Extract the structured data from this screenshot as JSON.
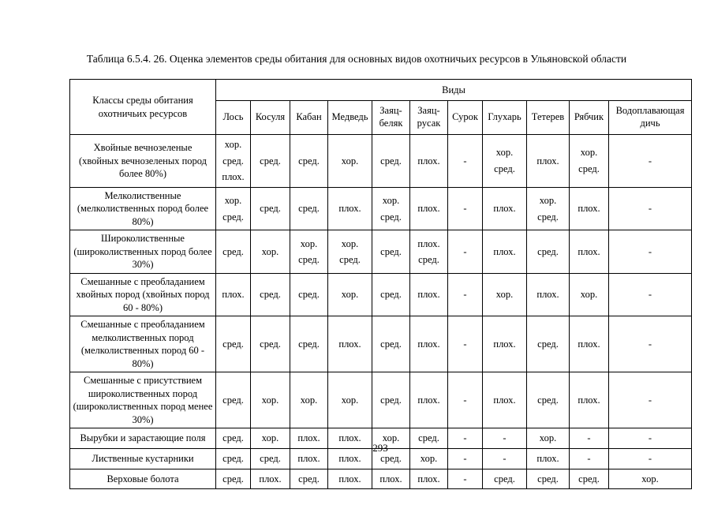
{
  "page": {
    "title": "Таблица 6.5.4. 26. Оценка элементов среды обитания для основных видов охотничьих ресурсов в Ульяновской области",
    "page_number": "293"
  },
  "table": {
    "corner_header": "Классы среды обитания охотничьих ресурсов",
    "species_group_header": "Виды",
    "columns": [
      "Лось",
      "Косуля",
      "Кабан",
      "Медведь",
      "Заяц-беляк",
      "Заяц-русак",
      "Сурок",
      "Глухарь",
      "Тетерев",
      "Рябчик",
      "Водоплавающая дичь"
    ],
    "rows": [
      {
        "habitat": "Хвойные вечнозеленые (хвойных вечнозеленых пород более 80%)",
        "values": [
          "хор.\nсред.\nплох.",
          "сред.",
          "сред.",
          "хор.",
          "сред.",
          "плох.",
          "-",
          "хор.\nсред.",
          "плох.",
          "хор.\nсред.",
          "-"
        ]
      },
      {
        "habitat": "Мелколиственные (мелколиственных пород более 80%)",
        "values": [
          "хор.\nсред.",
          "сред.",
          "сред.",
          "плох.",
          "хор.\nсред.",
          "плох.",
          "-",
          "плох.",
          "хор.\nсред.",
          "плох.",
          "-"
        ]
      },
      {
        "habitat": "Широколиственные (широколиственных пород более 30%)",
        "values": [
          "сред.",
          "хор.",
          "хор.\nсред.",
          "хор.\nсред.",
          "сред.",
          "плох.\nсред.",
          "-",
          "плох.",
          "сред.",
          "плох.",
          "-"
        ]
      },
      {
        "habitat": "Смешанные с преобладанием хвойных пород (хвойных пород 60 - 80%)",
        "values": [
          "плох.",
          "сред.",
          "сред.",
          "хор.",
          "сред.",
          "плох.",
          "-",
          "хор.",
          "плох.",
          "хор.",
          "-"
        ]
      },
      {
        "habitat": "Смешанные с преобладанием мелколиственных пород (мелколиственных пород 60 - 80%)",
        "values": [
          "сред.",
          "сред.",
          "сред.",
          "плох.",
          "сред.",
          "плох.",
          "-",
          "плох.",
          "сред.",
          "плох.",
          "-"
        ]
      },
      {
        "habitat": "Смешанные с присутствием широколиственных пород (широколиственных пород менее 30%)",
        "values": [
          "сред.",
          "хор.",
          "хор.",
          "хор.",
          "сред.",
          "плох.",
          "-",
          "плох.",
          "сред.",
          "плох.",
          "-"
        ]
      },
      {
        "habitat": "Вырубки и зарастающие поля",
        "values": [
          "сред.",
          "хор.",
          "плох.",
          "плох.",
          "хор.",
          "сред.",
          "-",
          "-",
          "хор.",
          "-",
          "-"
        ]
      },
      {
        "habitat": "Лиственные кустарники",
        "values": [
          "сред.",
          "сред.",
          "плох.",
          "плох.",
          "сред.",
          "хор.",
          "-",
          "-",
          "плох.",
          "-",
          "-"
        ]
      },
      {
        "habitat": "Верховые болота",
        "values": [
          "сред.",
          "плох.",
          "сред.",
          "плох.",
          "плох.",
          "плох.",
          "-",
          "сред.",
          "сред.",
          "сред.",
          "хор."
        ]
      }
    ]
  }
}
